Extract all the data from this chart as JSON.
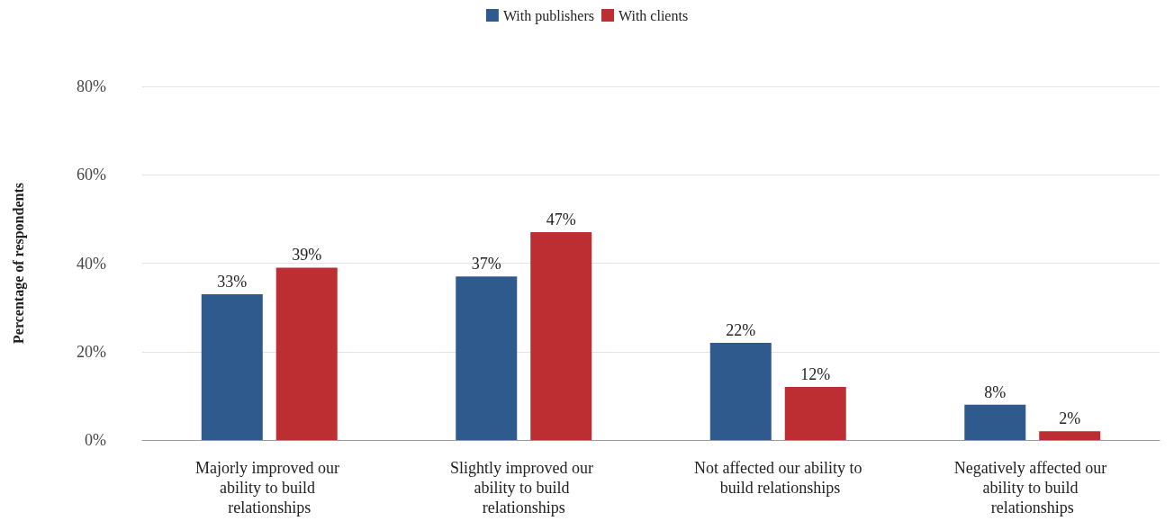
{
  "chart_data": {
    "type": "bar",
    "ylabel": "Percentage of respondents",
    "categories": [
      "Majorly improved our ability to build relationships",
      "Slightly improved our ability to build relationships",
      "Not affected our ability to build relationships",
      "Negatively affected our ability to build relationships"
    ],
    "series": [
      {
        "name": "With publishers",
        "color": "#2e5a8e",
        "values": [
          33,
          37,
          22,
          8
        ],
        "value_labels": [
          "33%",
          "37%",
          "22%",
          "8%"
        ]
      },
      {
        "name": "With clients",
        "color": "#bc2e32",
        "values": [
          39,
          47,
          12,
          2
        ],
        "value_labels": [
          "39%",
          "47%",
          "12%",
          "2%"
        ]
      }
    ],
    "ylim": [
      0,
      80
    ],
    "yticks": [
      {
        "value": 0,
        "label": "0%"
      },
      {
        "value": 20,
        "label": "20%"
      },
      {
        "value": 40,
        "label": "40%"
      },
      {
        "value": 60,
        "label": "60%"
      },
      {
        "value": 80,
        "label": "80%"
      }
    ],
    "grid": "y",
    "legend": "top"
  }
}
